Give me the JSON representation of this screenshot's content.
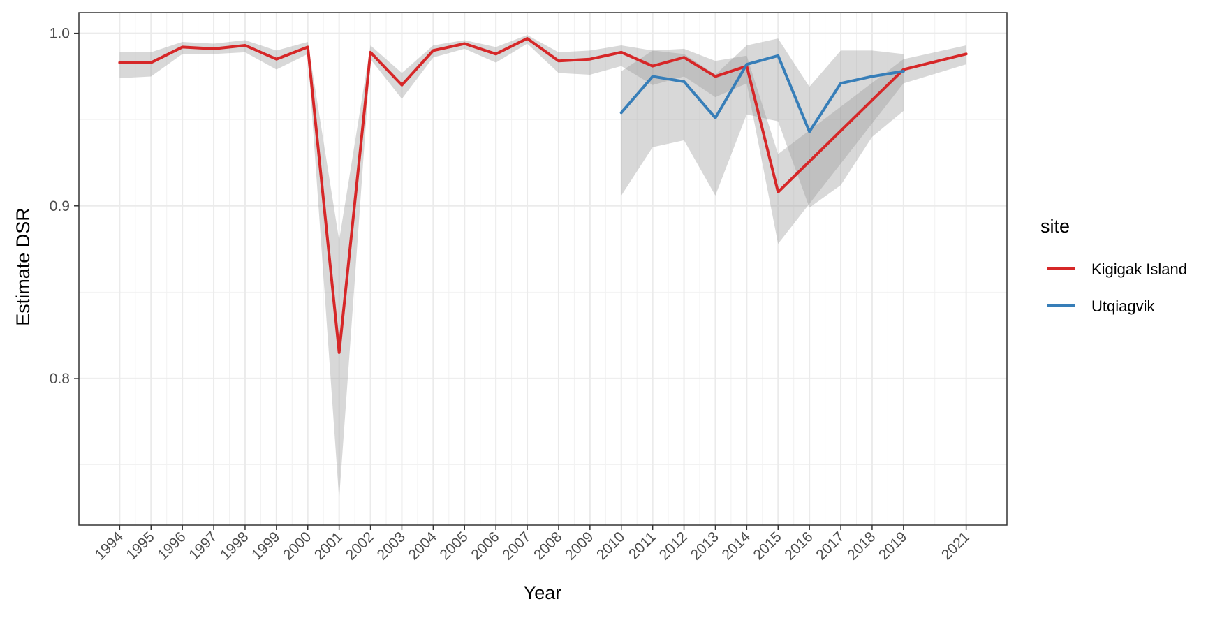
{
  "chart_data": {
    "type": "line",
    "title": "",
    "xlabel": "Year",
    "ylabel": "Estimate DSR",
    "ylim": [
      0.715,
      1.012
    ],
    "xlim": [
      1992.7,
      2022.3
    ],
    "y_ticks": [
      0.8,
      0.9,
      1.0
    ],
    "y_tick_labels": [
      "0.8",
      "0.9",
      "1.0"
    ],
    "y_minor_ticks": [
      0.75,
      0.85,
      0.95
    ],
    "x_ticks": [
      1994,
      1995,
      1996,
      1997,
      1998,
      1999,
      2000,
      2001,
      2002,
      2003,
      2004,
      2005,
      2006,
      2007,
      2008,
      2009,
      2010,
      2011,
      2012,
      2013,
      2014,
      2015,
      2016,
      2017,
      2018,
      2019,
      2021
    ],
    "x_tick_labels": [
      "1994",
      "1995",
      "1996",
      "1997",
      "1998",
      "1999",
      "2000",
      "2001",
      "2002",
      "2003",
      "2004",
      "2005",
      "2006",
      "2007",
      "2008",
      "2009",
      "2010",
      "2011",
      "2012",
      "2013",
      "2014",
      "2015",
      "2016",
      "2017",
      "2018",
      "2019",
      "2021"
    ],
    "grid": true,
    "legend": {
      "title": "site",
      "position": "right"
    },
    "series": [
      {
        "name": "Kigigak Island",
        "color": "#d62728",
        "x": [
          1994,
          1995,
          1996,
          1997,
          1998,
          1999,
          2000,
          2001,
          2002,
          2003,
          2004,
          2005,
          2006,
          2007,
          2008,
          2009,
          2010,
          2011,
          2012,
          2013,
          2014,
          2015,
          2019,
          2021
        ],
        "y": [
          0.983,
          0.983,
          0.992,
          0.991,
          0.993,
          0.985,
          0.992,
          0.815,
          0.989,
          0.97,
          0.99,
          0.994,
          0.988,
          0.997,
          0.984,
          0.985,
          0.989,
          0.981,
          0.986,
          0.975,
          0.981,
          0.908,
          0.979,
          0.988
        ],
        "lower": [
          0.974,
          0.975,
          0.988,
          0.988,
          0.989,
          0.979,
          0.988,
          0.73,
          0.985,
          0.962,
          0.986,
          0.991,
          0.983,
          0.994,
          0.977,
          0.976,
          0.981,
          0.97,
          0.975,
          0.963,
          0.971,
          0.878,
          0.971,
          0.982
        ],
        "upper": [
          0.989,
          0.989,
          0.995,
          0.994,
          0.996,
          0.99,
          0.995,
          0.88,
          0.993,
          0.977,
          0.993,
          0.996,
          0.992,
          0.999,
          0.989,
          0.99,
          0.993,
          0.99,
          0.991,
          0.984,
          0.987,
          0.93,
          0.985,
          0.993
        ]
      },
      {
        "name": "Utqiagvik",
        "color": "#377eb8",
        "x": [
          2010,
          2011,
          2012,
          2013,
          2014,
          2015,
          2016,
          2017,
          2018,
          2019
        ],
        "y": [
          0.954,
          0.975,
          0.972,
          0.951,
          0.982,
          0.987,
          0.943,
          0.971,
          0.975,
          0.978
        ],
        "lower": [
          0.906,
          0.934,
          0.938,
          0.906,
          0.953,
          0.949,
          0.899,
          0.912,
          0.94,
          0.955
        ],
        "upper": [
          0.978,
          0.99,
          0.988,
          0.976,
          0.993,
          0.997,
          0.969,
          0.99,
          0.99,
          0.988
        ]
      }
    ]
  }
}
